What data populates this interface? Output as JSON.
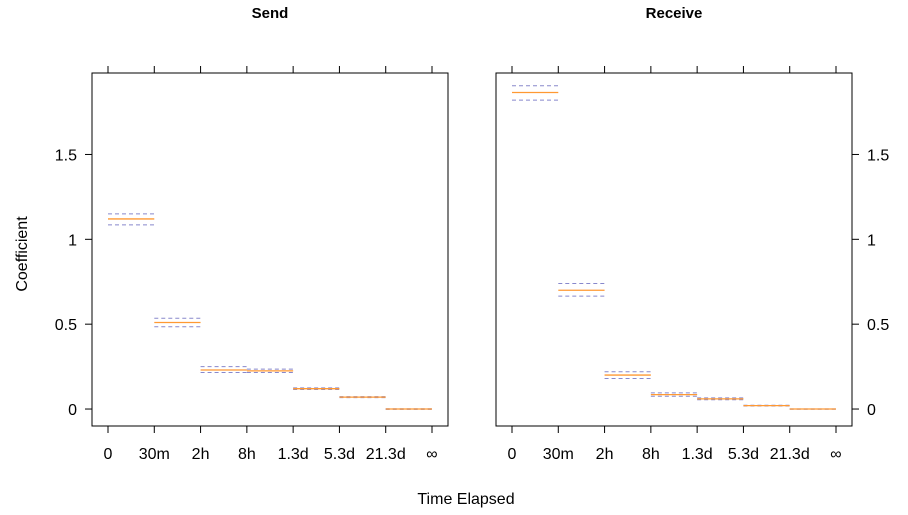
{
  "chart_data": [
    {
      "type": "step",
      "title": "Send",
      "xlabel": "Time Elapsed",
      "ylabel": "Coefficient",
      "x_ticks": [
        "0",
        "30m",
        "2h",
        "8h",
        "1.3d",
        "5.3d",
        "21.3d",
        "∞"
      ],
      "ylim": [
        -0.1,
        1.98
      ],
      "y_ticks": [
        "0",
        "0.5",
        "1",
        "1.5"
      ],
      "y_tick_values": [
        0,
        0.5,
        1,
        1.5
      ],
      "y_axis_side": "left",
      "grid": false,
      "colors": {
        "estimate": "#ff9933",
        "interval": "#8888cc"
      },
      "segments": [
        {
          "from": "0",
          "to": "30m",
          "estimate": 1.12,
          "lower": 1.085,
          "upper": 1.15
        },
        {
          "from": "30m",
          "to": "2h",
          "estimate": 0.51,
          "lower": 0.485,
          "upper": 0.535
        },
        {
          "from": "2h",
          "to": "8h",
          "estimate": 0.23,
          "lower": 0.215,
          "upper": 0.25
        },
        {
          "from": "8h",
          "to": "1.3d",
          "estimate": 0.225,
          "lower": 0.215,
          "upper": 0.235
        },
        {
          "from": "1.3d",
          "to": "5.3d",
          "estimate": 0.12,
          "lower": 0.115,
          "upper": 0.125
        },
        {
          "from": "5.3d",
          "to": "21.3d",
          "estimate": 0.07,
          "lower": 0.067,
          "upper": 0.073
        },
        {
          "from": "21.3d",
          "to": "∞",
          "estimate": 0.0,
          "lower": -0.002,
          "upper": 0.002
        }
      ]
    },
    {
      "type": "step",
      "title": "Receive",
      "xlabel": "Time Elapsed",
      "ylabel": "Coefficient",
      "x_ticks": [
        "0",
        "30m",
        "2h",
        "8h",
        "1.3d",
        "5.3d",
        "21.3d",
        "∞"
      ],
      "ylim": [
        -0.1,
        1.98
      ],
      "y_ticks": [
        "0",
        "0.5",
        "1",
        "1.5"
      ],
      "y_tick_values": [
        0,
        0.5,
        1,
        1.5
      ],
      "y_axis_side": "right",
      "grid": false,
      "colors": {
        "estimate": "#ff9933",
        "interval": "#8888cc"
      },
      "segments": [
        {
          "from": "0",
          "to": "30m",
          "estimate": 1.865,
          "lower": 1.82,
          "upper": 1.905
        },
        {
          "from": "30m",
          "to": "2h",
          "estimate": 0.7,
          "lower": 0.665,
          "upper": 0.74
        },
        {
          "from": "2h",
          "to": "8h",
          "estimate": 0.2,
          "lower": 0.18,
          "upper": 0.22
        },
        {
          "from": "8h",
          "to": "1.3d",
          "estimate": 0.085,
          "lower": 0.075,
          "upper": 0.095
        },
        {
          "from": "1.3d",
          "to": "5.3d",
          "estimate": 0.06,
          "lower": 0.055,
          "upper": 0.066
        },
        {
          "from": "5.3d",
          "to": "21.3d",
          "estimate": 0.02,
          "lower": 0.018,
          "upper": 0.022
        },
        {
          "from": "21.3d",
          "to": "∞",
          "estimate": 0.0,
          "lower": -0.001,
          "upper": 0.001
        }
      ]
    }
  ]
}
